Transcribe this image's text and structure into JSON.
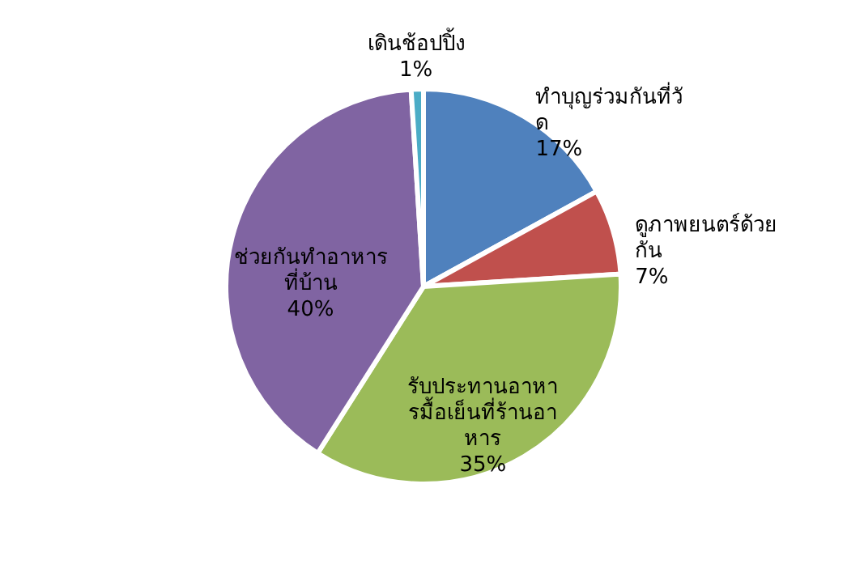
{
  "chart_data": {
    "type": "pie",
    "categories": [
      "ทำบุญร่วมกันที่วัด",
      "ดูภาพยนตร์ด้วยกัน",
      "รับประทานอาหารมื้อเย็นที่ร้านอาหาร",
      "ช่วยกันทำอาหารที่บ้าน",
      "เดินช้อปปิ้ง"
    ],
    "values": [
      17,
      7,
      35,
      40,
      1
    ],
    "value_labels": [
      "17%",
      "7%",
      "35%",
      "40%",
      "1%"
    ],
    "colors": [
      "#4f81bd",
      "#c0504d",
      "#9bbb59",
      "#8064a2",
      "#4bacc6"
    ]
  }
}
